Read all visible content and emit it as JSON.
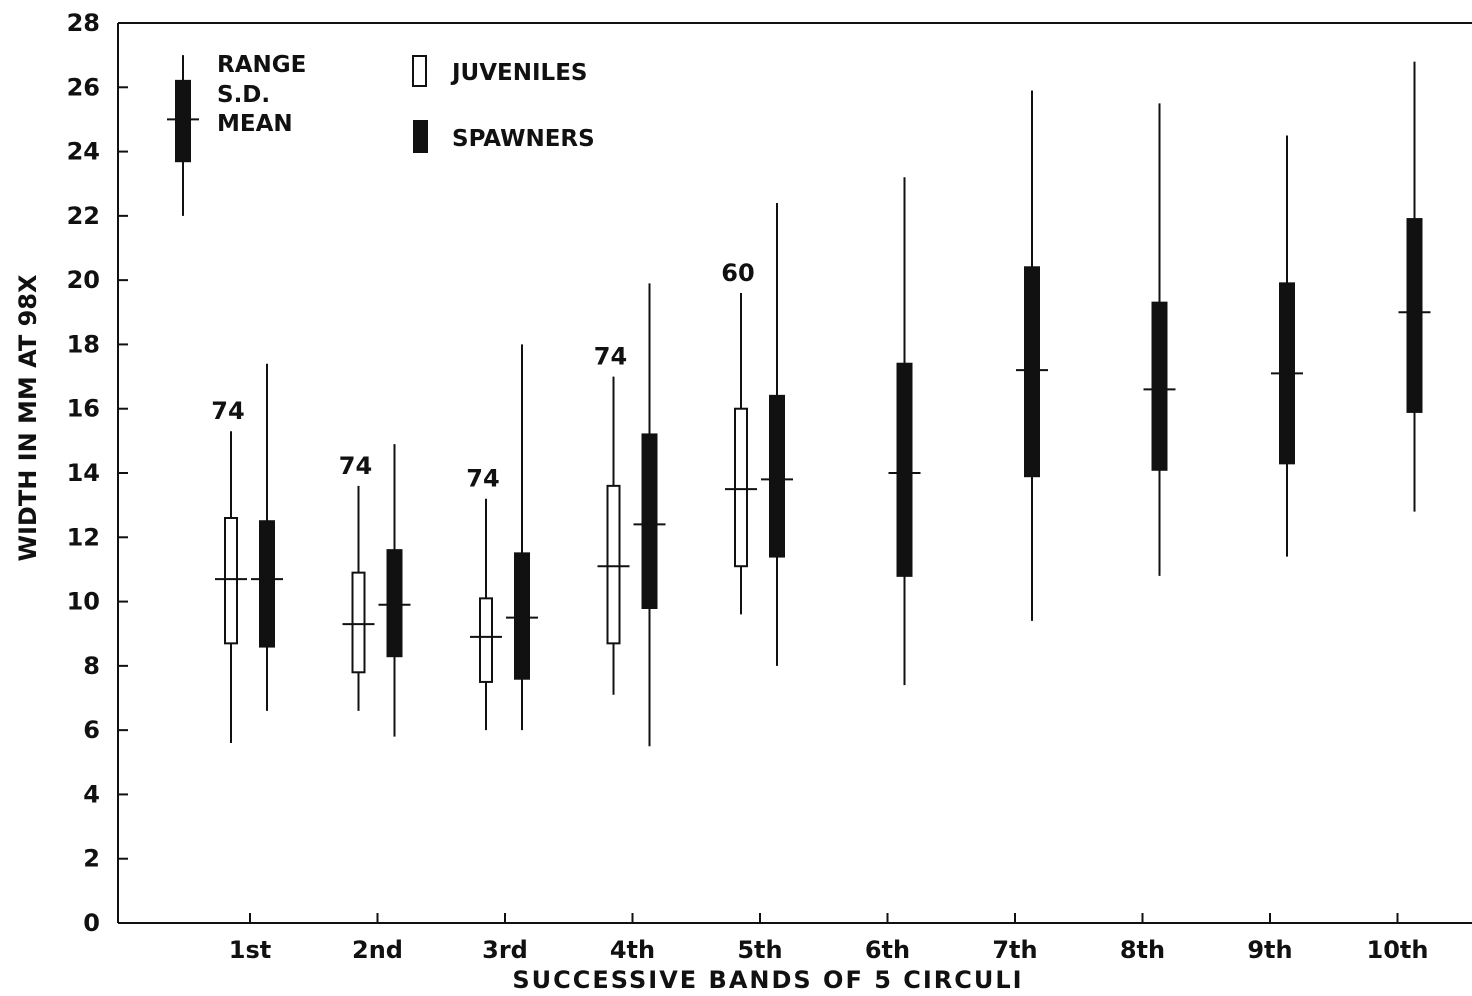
{
  "chart_data": {
    "type": "box",
    "xlabel": "SUCCESSIVE BANDS OF 5 CIRCULI",
    "ylabel": "WIDTH IN MM AT 98X",
    "ylim": [
      0,
      28
    ],
    "yticks": [
      0,
      2,
      4,
      6,
      8,
      10,
      12,
      14,
      16,
      18,
      20,
      22,
      24,
      26,
      28
    ],
    "categories": [
      "1st",
      "2nd",
      "3rd",
      "4th",
      "5th",
      "6th",
      "7th",
      "8th",
      "9th",
      "10th"
    ],
    "legend": {
      "key_labels": [
        "RANGE",
        "S.D.",
        "MEAN"
      ],
      "key_example": {
        "min": 22,
        "sd_low": 23.7,
        "mean": 25,
        "sd_high": 26.2,
        "max": 27
      },
      "juveniles_label": "JUVENILES",
      "spawners_label": "SPAWNERS"
    },
    "series": [
      {
        "name": "JUVENILES",
        "fill": "#ffffff",
        "stats": [
          {
            "category": "1st",
            "min": 5.6,
            "sd_low": 8.7,
            "mean": 10.7,
            "sd_high": 12.6,
            "max": 15.3,
            "n": "74"
          },
          {
            "category": "2nd",
            "min": 6.6,
            "sd_low": 7.8,
            "mean": 9.3,
            "sd_high": 10.9,
            "max": 13.6,
            "n": "74"
          },
          {
            "category": "3rd",
            "min": 6.0,
            "sd_low": 7.5,
            "mean": 8.9,
            "sd_high": 10.1,
            "max": 13.2,
            "n": "74"
          },
          {
            "category": "4th",
            "min": 7.1,
            "sd_low": 8.7,
            "mean": 11.1,
            "sd_high": 13.6,
            "max": 17.0,
            "n": "74"
          },
          {
            "category": "5th",
            "min": 9.6,
            "sd_low": 11.1,
            "mean": 13.5,
            "sd_high": 16.0,
            "max": 19.6,
            "n": "60"
          }
        ]
      },
      {
        "name": "SPAWNERS",
        "fill": "#111111",
        "stats": [
          {
            "category": "1st",
            "min": 6.6,
            "sd_low": 8.6,
            "mean": 10.7,
            "sd_high": 12.5,
            "max": 17.4
          },
          {
            "category": "2nd",
            "min": 5.8,
            "sd_low": 8.3,
            "mean": 9.9,
            "sd_high": 11.6,
            "max": 14.9
          },
          {
            "category": "3rd",
            "min": 6.0,
            "sd_low": 7.6,
            "mean": 9.5,
            "sd_high": 11.5,
            "max": 18.0
          },
          {
            "category": "4th",
            "min": 5.5,
            "sd_low": 9.8,
            "mean": 12.4,
            "sd_high": 15.2,
            "max": 19.9
          },
          {
            "category": "5th",
            "min": 8.0,
            "sd_low": 11.4,
            "mean": 13.8,
            "sd_high": 16.4,
            "max": 22.4
          },
          {
            "category": "6th",
            "min": 7.4,
            "sd_low": 10.8,
            "mean": 14.0,
            "sd_high": 17.4,
            "max": 23.2
          },
          {
            "category": "7th",
            "min": 9.4,
            "sd_low": 13.9,
            "mean": 17.2,
            "sd_high": 20.4,
            "max": 25.9
          },
          {
            "category": "8th",
            "min": 10.8,
            "sd_low": 14.1,
            "mean": 16.6,
            "sd_high": 19.3,
            "max": 25.5
          },
          {
            "category": "9th",
            "min": 11.4,
            "sd_low": 14.3,
            "mean": 17.1,
            "sd_high": 19.9,
            "max": 24.5
          },
          {
            "category": "10th",
            "min": 12.8,
            "sd_low": 15.9,
            "mean": 19.0,
            "sd_high": 21.9,
            "max": 26.8
          }
        ]
      }
    ],
    "grid": false,
    "legend_position": "top-left"
  }
}
